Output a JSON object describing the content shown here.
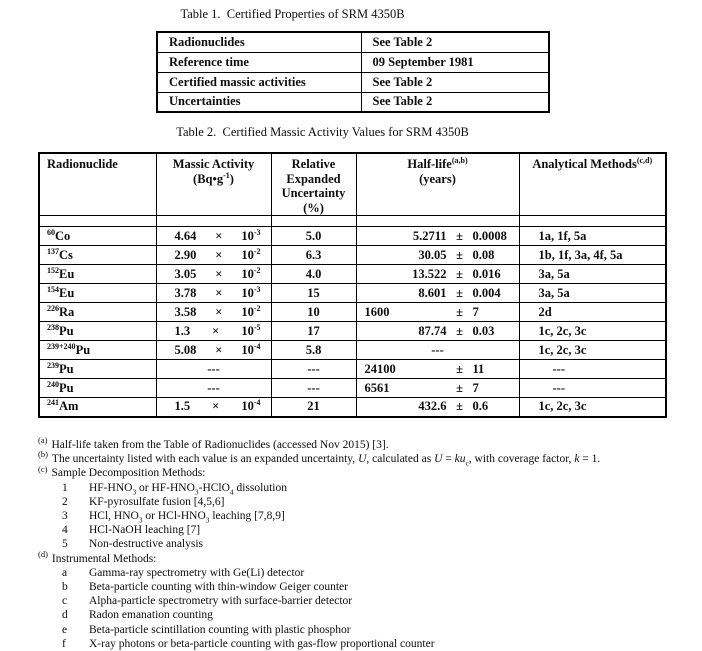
{
  "page": {
    "background": "#ffffff",
    "text_color": "#0d0d0d",
    "border_color": "#000000"
  },
  "table1": {
    "title": "Table 1.  Certified Properties of SRM 4350B",
    "rows": [
      {
        "property": "Radionuclides",
        "value": "See Table 2"
      },
      {
        "property": "Reference time",
        "value": "09 September 1981"
      },
      {
        "property": "Certified massic activities",
        "value": "See Table 2"
      },
      {
        "property": "Uncertainties",
        "value": "See Table 2"
      }
    ]
  },
  "table2": {
    "title": "Table 2.  Certified Massic Activity Values for SRM 4350B",
    "headers": [
      "Radionuclide",
      "Massic Activity\n(Bq•g^{-1})",
      "Relative\nExpanded\nUncertainty\n(%)",
      "Half-life^{(a,b)}\n(years)",
      "Analytical Methods^{(c,d)}"
    ],
    "rows": [
      {
        "nuclide": "^{60}Co",
        "activity": [
          "4.64",
          "×",
          "10^{-3}"
        ],
        "rel_unc": "5.0",
        "halflife": [
          "5.2711",
          "±",
          "0.0008"
        ],
        "methods": "1a, 1f, 5a"
      },
      {
        "nuclide": "^{137}Cs",
        "activity": [
          "2.90",
          "×",
          "10^{-2}"
        ],
        "rel_unc": "6.3",
        "halflife": [
          "30.05",
          "±",
          "0.08"
        ],
        "methods": "1b, 1f, 3a, 4f, 5a"
      },
      {
        "nuclide": "^{152}Eu",
        "activity": [
          "3.05",
          "×",
          "10^{-2}"
        ],
        "rel_unc": "4.0",
        "halflife": [
          "13.522",
          "±",
          "0.016"
        ],
        "methods": "3a, 5a"
      },
      {
        "nuclide": "^{154}Eu",
        "activity": [
          "3.78",
          "×",
          "10^{-3}"
        ],
        "rel_unc": "15",
        "halflife": [
          "8.601",
          "±",
          "0.004"
        ],
        "methods": "3a, 5a"
      },
      {
        "nuclide": "^{226}Ra",
        "activity": [
          "3.58",
          "×",
          "10^{-2}"
        ],
        "rel_unc": "10",
        "halflife": [
          "1600",
          "±",
          "7"
        ],
        "methods": "2d"
      },
      {
        "nuclide": "^{238}Pu",
        "activity": [
          "1.3",
          "×",
          "10^{-5}"
        ],
        "rel_unc": "17",
        "halflife": [
          "87.74",
          "±",
          "0.03"
        ],
        "methods": "1c, 2c, 3c"
      },
      {
        "nuclide": "^{239+240}Pu",
        "activity": [
          "5.08",
          "×",
          "10^{-4}"
        ],
        "rel_unc": "5.8",
        "halflife": "---",
        "methods": "1c, 2c, 3c"
      },
      {
        "nuclide": "^{239}Pu",
        "activity": "---",
        "rel_unc": "---",
        "halflife": [
          "24100",
          "±",
          "11"
        ],
        "methods": "---"
      },
      {
        "nuclide": "^{240}Pu",
        "activity": "---",
        "rel_unc": "---",
        "halflife": [
          "6561",
          "±",
          "7"
        ],
        "methods": "---"
      },
      {
        "nuclide": "^{241}Am",
        "activity": [
          "1.5",
          "×",
          "10^{-4}"
        ],
        "rel_unc": "21",
        "halflife": [
          "432.6",
          "±",
          "0.6"
        ],
        "methods": "1c, 2c, 3c"
      }
    ]
  },
  "footnotes": [
    {
      "type": "note",
      "label": "(a)",
      "text": "Half-life taken from the Table of Radionuclides (accessed Nov 2015) [3]."
    },
    {
      "type": "note",
      "label": "(b)",
      "text": "The uncertainty listed with each value is an expanded uncertainty, *U*, calculated as *U* = *ku*_{c}, with coverage factor, *k* = 1."
    },
    {
      "type": "note",
      "label": "(c)",
      "text": "Sample Decomposition Methods:"
    },
    {
      "type": "item",
      "key": "1",
      "text": "HF-HNO_{3} or HF-HNO_{3}-HClO_{4} dissolution"
    },
    {
      "type": "item",
      "key": "2",
      "text": "KF-pyrosulfate fusion [4,5,6]"
    },
    {
      "type": "item",
      "key": "3",
      "text": "HCl, HNO_{3} or HCl-HNO_{3} leaching [7,8,9]"
    },
    {
      "type": "item",
      "key": "4",
      "text": "HCl-NaOH leaching [7]"
    },
    {
      "type": "item",
      "key": "5",
      "text": "Non-destructive analysis"
    },
    {
      "type": "note",
      "label": "(d)",
      "text": "Instrumental Methods:"
    },
    {
      "type": "item",
      "key": "a",
      "text": "Gamma-ray spectrometry with Ge(Li) detector"
    },
    {
      "type": "item",
      "key": "b",
      "text": "Beta-particle counting with thin-window Geiger counter"
    },
    {
      "type": "item",
      "key": "c",
      "text": "Alpha-particle spectrometry with surface-barrier detector"
    },
    {
      "type": "item",
      "key": "d",
      "text": "Radon emanation counting"
    },
    {
      "type": "item",
      "key": "e",
      "text": "Beta-particle scintillation counting with plastic phosphor"
    },
    {
      "type": "item",
      "key": "f",
      "text": "X-ray photons or beta-particle counting with gas-flow proportional counter"
    }
  ]
}
